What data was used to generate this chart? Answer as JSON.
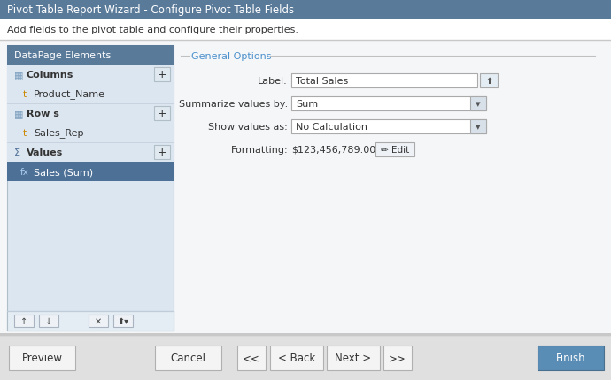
{
  "title": "Pivot Table Report Wizard - Configure Pivot Table Fields",
  "title_bg": "#5a7a9a",
  "title_fg": "#ffffff",
  "subtitle": "Add fields to the pivot table and configure their properties.",
  "subtitle_fg": "#333333",
  "bg_color": "#ffffff",
  "left_panel_bg": "#dce6f0",
  "left_panel_header_bg": "#5a7a9a",
  "left_panel_header_fg": "#ffffff",
  "left_panel_header": "DataPage Elements",
  "selected_item_bg": "#4d7097",
  "selected_item_fg": "#ffffff",
  "item_fg": "#333333",
  "general_options_label": "General Options",
  "general_options_color": "#4d91cc",
  "form_label_color": "#333333",
  "finish_bg": "#5a8db5",
  "finish_fg": "#ffffff",
  "button_bg": "#f4f4f4",
  "button_fg": "#333333",
  "bottom_bar_bg": "#e0e0e0",
  "input_bg": "#ffffff",
  "input_border": "#aaaaaa",
  "dropdown_bg": "#ffffff",
  "dropdown_arrow_bg": "#d8e0ea",
  "toolbar_bg": "#e8edf2",
  "panel_border": "#b0bec8",
  "groupbox_line": "#c0c0c0"
}
